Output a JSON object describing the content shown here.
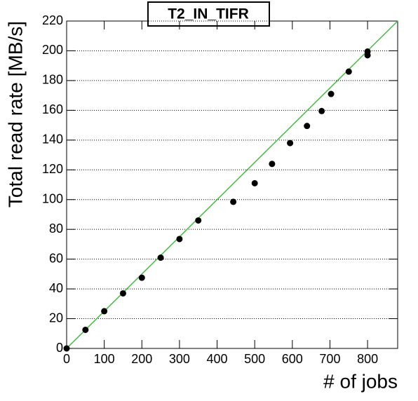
{
  "chart_data": {
    "type": "scatter",
    "title": "T2_IN_TIFR",
    "x_label": "# of jobs",
    "y_label": "Total read rate [MB/s]",
    "points": {
      "color": "#000000",
      "x": [
        0,
        50,
        100,
        150,
        200,
        250,
        300,
        350,
        443,
        500,
        546,
        594,
        639,
        678,
        703,
        750,
        800,
        800
      ],
      "values": [
        0,
        12.5,
        25,
        37,
        47.5,
        61,
        73.5,
        86,
        98.5,
        111,
        124,
        138,
        149.5,
        159.5,
        171,
        186,
        197,
        199.5
      ]
    },
    "fit_line": {
      "color": "#44bb44",
      "x": [
        0,
        880
      ],
      "values": [
        0,
        220
      ]
    },
    "xlim": [
      0,
      880
    ],
    "ylim": [
      0,
      220
    ],
    "xticks": [
      0,
      100,
      200,
      300,
      400,
      500,
      600,
      700,
      800
    ],
    "yticks": [
      0,
      20,
      40,
      60,
      80,
      100,
      120,
      140,
      160,
      180,
      200,
      220
    ],
    "grid": true
  }
}
